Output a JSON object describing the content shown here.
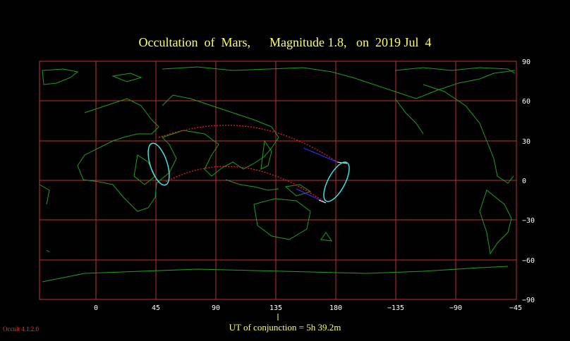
{
  "title": "Occultation  of  Mars,      Magnitude 1.8,   on  2019 Jul  4",
  "x_ticks": [
    "0",
    "45",
    "90",
    "135",
    "180",
    "−135",
    "−90",
    "−45"
  ],
  "y_ticks": [
    "90",
    "60",
    "30",
    "0",
    "−30",
    "−60",
    "−90"
  ],
  "conjunction_label": "UT of conjunction =  5h 39.2m",
  "version": "Occult 4.1.2.0",
  "colors": {
    "grid": "#c03030",
    "coast": "#1fa01f",
    "track": "#ff2020",
    "ellipse": "#40e0e0",
    "title": "#ffff66"
  }
}
